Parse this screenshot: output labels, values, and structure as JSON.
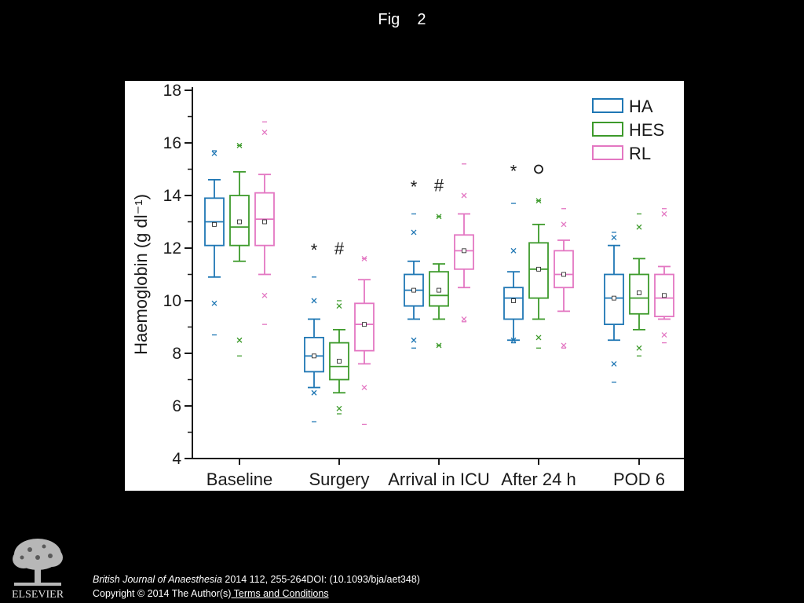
{
  "slide": {
    "title": "Fig    2"
  },
  "chart_data": {
    "type": "box",
    "title": "",
    "xlabel": "",
    "ylabel": "Haemoglobin (g dl⁻¹)",
    "ylim": [
      4,
      18
    ],
    "yticks": [
      4,
      6,
      8,
      10,
      12,
      14,
      16,
      18
    ],
    "grid": false,
    "legend_position": "top-right",
    "categories": [
      "Baseline",
      "Surgery",
      "Arrival in ICU",
      "After 24 h",
      "POD 6"
    ],
    "series": [
      {
        "name": "HA",
        "color": "#1f77b4",
        "boxes": [
          {
            "whislo": 10.9,
            "q1": 12.1,
            "med": 13.0,
            "q3": 13.9,
            "whishi": 14.6,
            "mean": 12.9,
            "fliers_x": [
              9.9,
              15.6
            ],
            "range_ticks": [
              8.7,
              15.7
            ]
          },
          {
            "whislo": 6.7,
            "q1": 7.3,
            "med": 7.9,
            "q3": 8.6,
            "whishi": 9.3,
            "mean": 7.9,
            "fliers_x": [
              6.5,
              10.0
            ],
            "range_ticks": [
              5.4,
              10.9
            ]
          },
          {
            "whislo": 9.3,
            "q1": 9.8,
            "med": 10.4,
            "q3": 11.0,
            "whishi": 11.5,
            "mean": 10.4,
            "fliers_x": [
              8.5,
              12.6
            ],
            "range_ticks": [
              8.2,
              13.3
            ]
          },
          {
            "whislo": 8.5,
            "q1": 9.3,
            "med": 10.1,
            "q3": 10.5,
            "whishi": 11.1,
            "mean": 10.0,
            "fliers_x": [
              8.5,
              11.9
            ],
            "range_ticks": [
              8.4,
              13.7
            ]
          },
          {
            "whislo": 8.5,
            "q1": 9.1,
            "med": 10.1,
            "q3": 11.0,
            "whishi": 12.1,
            "mean": 10.1,
            "fliers_x": [
              7.6,
              12.4
            ],
            "range_ticks": [
              6.9,
              12.6
            ]
          }
        ]
      },
      {
        "name": "HES",
        "color": "#3d9a2b",
        "boxes": [
          {
            "whislo": 11.5,
            "q1": 12.1,
            "med": 12.8,
            "q3": 14.0,
            "whishi": 14.9,
            "mean": 13.0,
            "fliers_x": [
              8.5,
              15.9
            ],
            "range_ticks": [
              7.9,
              15.9
            ]
          },
          {
            "whislo": 6.5,
            "q1": 7.0,
            "med": 7.5,
            "q3": 8.4,
            "whishi": 8.9,
            "mean": 7.7,
            "fliers_x": [
              5.9,
              9.8
            ],
            "range_ticks": [
              5.7,
              10.0
            ]
          },
          {
            "whislo": 9.3,
            "q1": 9.8,
            "med": 10.2,
            "q3": 11.1,
            "whishi": 11.4,
            "mean": 10.4,
            "fliers_x": [
              8.3,
              13.2
            ],
            "range_ticks": [
              8.3,
              13.2
            ]
          },
          {
            "whislo": 9.3,
            "q1": 10.1,
            "med": 11.2,
            "q3": 12.2,
            "whishi": 12.9,
            "mean": 11.2,
            "fliers_x": [
              8.6,
              13.8
            ],
            "range_ticks": [
              8.2,
              13.8
            ]
          },
          {
            "whislo": 8.9,
            "q1": 9.5,
            "med": 10.1,
            "q3": 11.0,
            "whishi": 11.6,
            "mean": 10.3,
            "fliers_x": [
              8.2,
              12.8
            ],
            "range_ticks": [
              7.9,
              13.3
            ]
          }
        ]
      },
      {
        "name": "RL",
        "color": "#e377c2",
        "boxes": [
          {
            "whislo": 11.0,
            "q1": 12.1,
            "med": 13.1,
            "q3": 14.1,
            "whishi": 14.8,
            "mean": 13.0,
            "fliers_x": [
              10.2,
              16.4
            ],
            "range_ticks": [
              9.1,
              16.8
            ]
          },
          {
            "whislo": 7.6,
            "q1": 8.1,
            "med": 9.1,
            "q3": 9.9,
            "whishi": 10.8,
            "mean": 9.1,
            "fliers_x": [
              6.7,
              11.6
            ],
            "range_ticks": [
              5.3,
              11.6
            ]
          },
          {
            "whislo": 10.5,
            "q1": 11.2,
            "med": 11.9,
            "q3": 12.5,
            "whishi": 13.3,
            "mean": 11.9,
            "fliers_x": [
              9.3,
              14.0
            ],
            "range_ticks": [
              9.2,
              15.2
            ]
          },
          {
            "whislo": 9.6,
            "q1": 10.5,
            "med": 11.0,
            "q3": 11.9,
            "whishi": 12.3,
            "mean": 11.0,
            "fliers_x": [
              8.3,
              12.9
            ],
            "range_ticks": [
              8.2,
              13.5
            ]
          },
          {
            "whislo": 9.3,
            "q1": 9.4,
            "med": 10.1,
            "q3": 11.0,
            "whishi": 11.3,
            "mean": 10.2,
            "fliers_x": [
              8.7,
              13.3
            ],
            "range_ticks": [
              8.4,
              13.5
            ]
          }
        ]
      }
    ],
    "annotations": [
      {
        "text": "*",
        "category": "Surgery",
        "series": "HA",
        "y": 12.0
      },
      {
        "text": "#",
        "category": "Surgery",
        "series": "HES",
        "y": 12.0
      },
      {
        "text": "*",
        "category": "Arrival in ICU",
        "series": "HA",
        "y": 14.4
      },
      {
        "text": "#",
        "category": "Arrival in ICU",
        "series": "HES",
        "y": 14.4
      },
      {
        "text": "*",
        "category": "After 24 h",
        "series": "HA",
        "y": 15.0
      },
      {
        "text": "o",
        "category": "After 24 h",
        "series": "HES",
        "y": 15.0
      }
    ]
  },
  "footer": {
    "publisher_logo": "ELSEVIER",
    "journal": "British Journal of Anaesthesia",
    "citation_rest": " 2014 112, 255-264DOI: (10.1093/bja/aet348)",
    "copyright": "Copyright © 2014 The Author(s)",
    "terms_link": " Terms and Conditions"
  }
}
